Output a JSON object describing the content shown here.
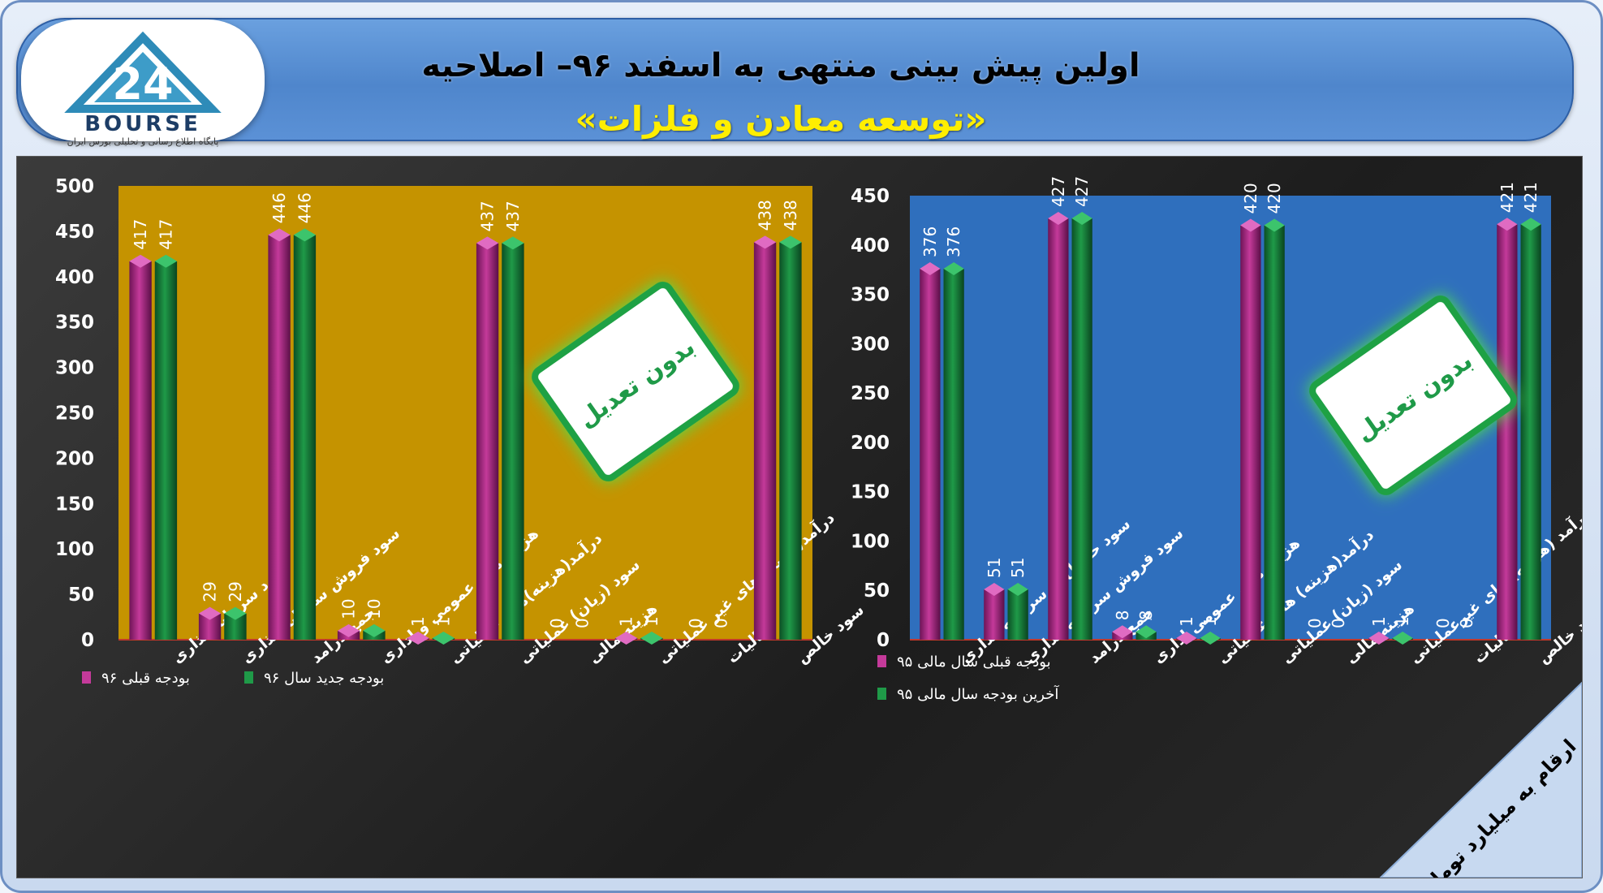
{
  "header": {
    "title": "اولین پیش بینی منتهی به اسفند ۹۶– اصلاحیه",
    "subtitle": "«توسعه معادن و فلزات»",
    "logo_text": "BOURSE",
    "logo_number": "24",
    "logo_subtext": "پایگاه اطلاع رسانی و تحلیلی بورس ایران"
  },
  "colors": {
    "left_plot_bg": "#c59300",
    "right_plot_bg": "#2f6fbd",
    "series_prev": "#c43a9a",
    "series_new": "#1f9a48",
    "badge_text": "#1f9a48"
  },
  "badge_text": "بدون تعدیل",
  "unit_note": "ارقام به میلیارد تومان",
  "chart_data": [
    {
      "type": "bar",
      "position": "left",
      "categories": [
        "سود سرمایه گذاری",
        "سود فروش سرمایه گذاری",
        "جمع درامد",
        "هزینه های عمومی و اداری",
        "درآمد(هزینه)های عملیاتی",
        "سود (زیان) عملیاتی",
        "هزینه مالی",
        "درآمد(هزینه)های غیر عملیاتی",
        "مالیات",
        "سود خالص"
      ],
      "series": [
        {
          "name": "بودجه قبلی ۹۶",
          "values": [
            417,
            29,
            446,
            10,
            1,
            437,
            0,
            1,
            0,
            438
          ]
        },
        {
          "name": "بودجه جدید سال ۹۶",
          "values": [
            417,
            29,
            446,
            10,
            1,
            437,
            0,
            1,
            0,
            438
          ]
        }
      ],
      "ylim": [
        0,
        500
      ],
      "yticks": [
        0,
        50,
        100,
        150,
        200,
        250,
        300,
        350,
        400,
        450,
        500
      ],
      "legend": "bottom"
    },
    {
      "type": "bar",
      "position": "right",
      "categories": [
        "سود حاصل از سرمایه گذاری",
        "سود فروش سرمایه گذاری",
        "جمع درامد",
        "هزینه های عمومی اداری",
        "درآمد(هزینه) های عملیاتی",
        "سود (زیان) عملیاتی",
        "هزینه مالی",
        "درآمد (هزینه) های غیرعملیاتی",
        "مالیات",
        "سود خالص"
      ],
      "series": [
        {
          "name": "بودجه قبلی سال مالی ۹۵",
          "values": [
            376,
            51,
            427,
            8,
            1,
            420,
            0,
            1,
            0,
            421
          ]
        },
        {
          "name": "آخرین بودجه سال مالی ۹۵",
          "values": [
            376,
            51,
            427,
            8,
            1,
            420,
            0,
            1,
            0,
            421
          ]
        }
      ],
      "ylim": [
        0,
        450
      ],
      "yticks": [
        0,
        50,
        100,
        150,
        200,
        250,
        300,
        350,
        400,
        450
      ],
      "legend": "bottom-left"
    }
  ]
}
